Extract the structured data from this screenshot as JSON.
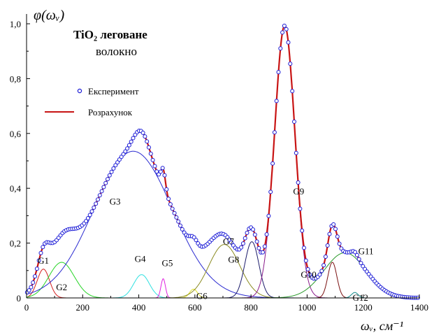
{
  "chart_data": {
    "type": "line",
    "title": "TiO₂ леговане",
    "subtitle": "волокно",
    "xlabel": "ωᵥ, см⁻¹",
    "ylabel": "φ(ωᵥ)",
    "xlim": [
      0,
      1400
    ],
    "ylim": [
      0,
      1.0
    ],
    "x_ticks": [
      0,
      200,
      400,
      600,
      800,
      1000,
      1200,
      1400
    ],
    "x_tick_labels": [
      "0",
      "200",
      "400",
      "600",
      "800",
      "1000",
      "1200",
      "1400"
    ],
    "y_ticks": [
      0,
      0.2,
      0.4,
      0.6,
      0.8,
      1.0
    ],
    "y_tick_labels": [
      "0",
      "0,2",
      "0,4",
      "0,6",
      "0,8",
      "1,0"
    ],
    "legend": [
      "Експеримент",
      "Розрахунок"
    ],
    "legend_position": "upper-left",
    "series": [
      {
        "name": "Експеримент",
        "style": "circle markers",
        "color": "#1a1ad6"
      },
      {
        "name": "Розрахунок",
        "style": "line",
        "color": "#c81414"
      }
    ],
    "components": [
      {
        "label": "G1",
        "center": 60,
        "height": 0.105,
        "width": 22,
        "color": "#d42020"
      },
      {
        "label": "G2",
        "center": 125,
        "height": 0.13,
        "width": 45,
        "color": "#26d426"
      },
      {
        "label": "G3",
        "center": 380,
        "height": 0.535,
        "width": 140,
        "color": "#2a2ad0"
      },
      {
        "label": "G4",
        "center": 410,
        "height": 0.085,
        "width": 28,
        "color": "#2ee0e0"
      },
      {
        "label": "G5",
        "center": 487,
        "height": 0.07,
        "width": 8,
        "color": "#e020e0"
      },
      {
        "label": "G6",
        "center": 595,
        "height": 0.032,
        "width": 14,
        "color": "#e0e030"
      },
      {
        "label": "G7",
        "center": 705,
        "height": 0.195,
        "width": 55,
        "color": "#8a8a20"
      },
      {
        "label": "G8",
        "center": 803,
        "height": 0.205,
        "width": 25,
        "color": "#1a1a6a"
      },
      {
        "label": "G9",
        "center": 920,
        "height": 0.99,
        "width": 36,
        "color": "#8a1a8a"
      },
      {
        "label": "G10",
        "center": 1090,
        "height": 0.13,
        "width": 16,
        "color": "#7a1010"
      },
      {
        "label": "G11",
        "center": 1135,
        "height": 0.165,
        "width": 75,
        "color": "#2a9a2a"
      },
      {
        "label": "G12",
        "center": 1170,
        "height": 0.02,
        "width": 12,
        "color": "#108a8a"
      }
    ],
    "grid": false
  }
}
